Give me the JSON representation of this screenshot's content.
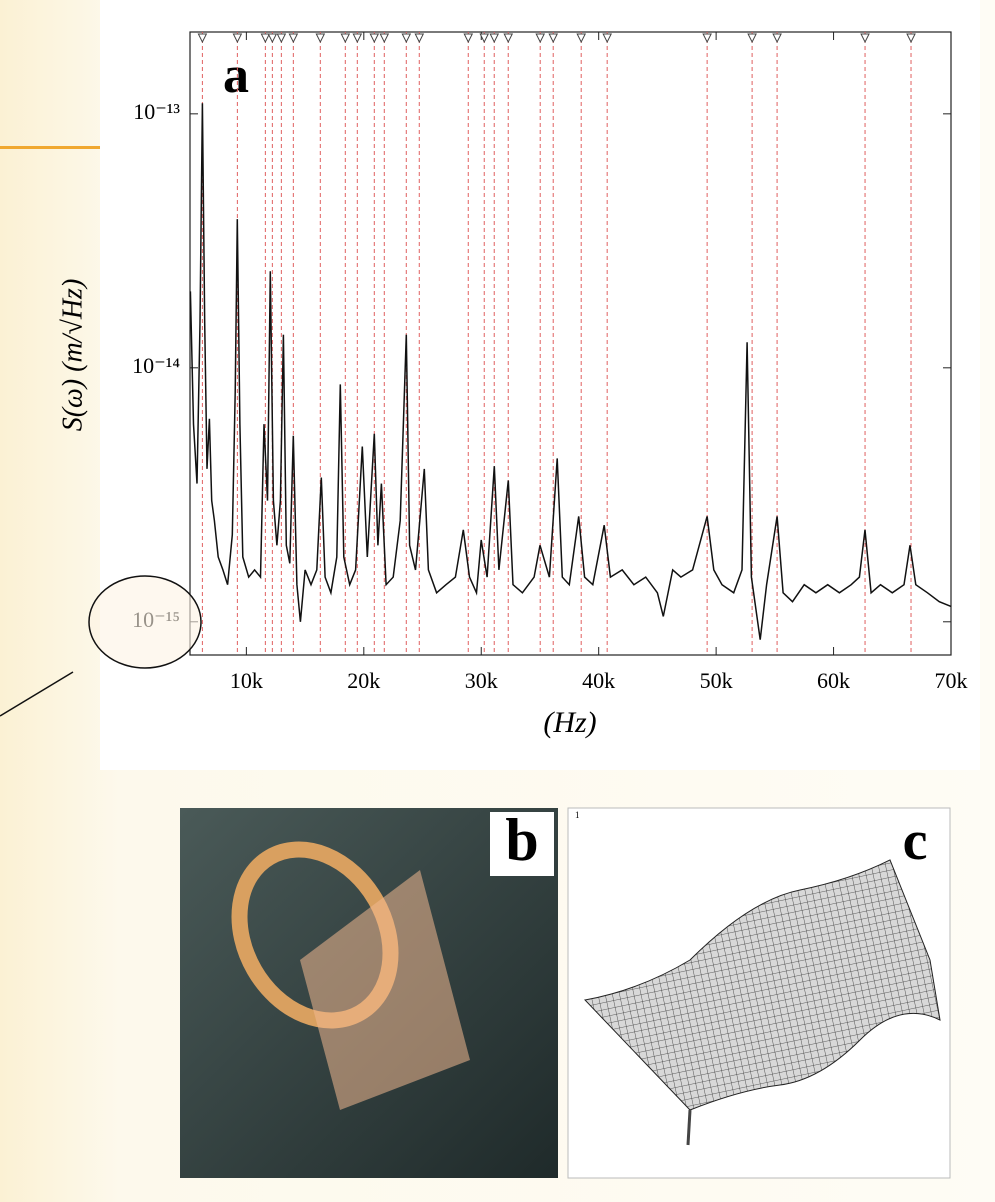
{
  "chart_data": {
    "type": "line",
    "title": "a",
    "x_label": "(Hz)",
    "y_label": "S(ω) (m/√Hz)",
    "log_y": true,
    "color": "#111111",
    "xlim": [
      5200,
      70000
    ],
    "xticks": [
      {
        "value": 10000,
        "label": "10k"
      },
      {
        "value": 20000,
        "label": "20k"
      },
      {
        "value": 30000,
        "label": "30k"
      },
      {
        "value": 40000,
        "label": "40k"
      },
      {
        "value": 50000,
        "label": "50k"
      },
      {
        "value": 60000,
        "label": "60k"
      },
      {
        "value": 70000,
        "label": "70k"
      }
    ],
    "ylim": [
      7.4e-16,
      2.1e-13
    ],
    "yticks": [
      {
        "value": 1e-13,
        "label": "10⁻¹³"
      },
      {
        "value": 1e-14,
        "label": "10⁻¹⁴"
      },
      {
        "value": 1e-15,
        "label": "10⁻¹⁵"
      }
    ],
    "x": [
      5234,
      5500,
      5800,
      6050,
      6255,
      6450,
      6650,
      6850,
      7050,
      7280,
      7600,
      8000,
      8400,
      8800,
      9050,
      9230,
      9450,
      9700,
      10200,
      10700,
      11200,
      11500,
      11800,
      12040,
      12300,
      12600,
      12900,
      13150,
      13400,
      13700,
      14000,
      14300,
      14600,
      15000,
      15500,
      16000,
      16380,
      16700,
      17200,
      17700,
      18000,
      18300,
      18800,
      19300,
      19870,
      20300,
      20890,
      21200,
      21500,
      21900,
      22500,
      23100,
      23620,
      23900,
      24400,
      25150,
      25500,
      26200,
      27000,
      27800,
      28470,
      29000,
      29600,
      30000,
      30500,
      31110,
      31500,
      32300,
      32700,
      33500,
      34500,
      35000,
      35800,
      36470,
      36900,
      37500,
      38300,
      38800,
      39500,
      40470,
      41000,
      42000,
      43000,
      44000,
      45000,
      45500,
      46300,
      47000,
      48000,
      49230,
      49800,
      50500,
      51500,
      52200,
      52640,
      53000,
      53750,
      54300,
      55190,
      55700,
      56500,
      57500,
      58500,
      59500,
      60500,
      61500,
      62200,
      62680,
      63200,
      64000,
      65000,
      66000,
      66510,
      67000,
      68000,
      69000,
      70000
    ],
    "values": [
      2e-14,
      6e-15,
      3.5e-15,
      1.5e-14,
      1.1e-13,
      1.5e-14,
      4e-15,
      6.3e-15,
      3e-15,
      2.5e-15,
      1.8e-15,
      1.6e-15,
      1.4e-15,
      2.2e-15,
      8e-15,
      3.85e-14,
      6e-15,
      1.8e-15,
      1.5e-15,
      1.6e-15,
      1.5e-15,
      6e-15,
      3e-15,
      2.4e-14,
      3e-15,
      2e-15,
      3e-15,
      1.35e-14,
      2e-15,
      1.7e-15,
      5.4e-15,
      1.4e-15,
      1e-15,
      1.6e-15,
      1.4e-15,
      1.6e-15,
      3.7e-15,
      1.5e-15,
      1.3e-15,
      1.8e-15,
      8.6e-15,
      1.8e-15,
      1.4e-15,
      1.6e-15,
      4.9e-15,
      1.8e-15,
      5.5e-15,
      2e-15,
      3.5e-15,
      1.4e-15,
      1.5e-15,
      2.5e-15,
      1.35e-14,
      2e-15,
      1.6e-15,
      4e-15,
      1.6e-15,
      1.3e-15,
      1.4e-15,
      1.5e-15,
      2.3e-15,
      1.5e-15,
      1.3e-15,
      2.1e-15,
      1.5e-15,
      4.1e-15,
      1.6e-15,
      3.6e-15,
      1.4e-15,
      1.3e-15,
      1.5e-15,
      2e-15,
      1.5e-15,
      4.4e-15,
      1.5e-15,
      1.4e-15,
      2.6e-15,
      1.5e-15,
      1.4e-15,
      2.4e-15,
      1.5e-15,
      1.6e-15,
      1.4e-15,
      1.5e-15,
      1.3e-15,
      1.05e-15,
      1.6e-15,
      1.5e-15,
      1.6e-15,
      2.6e-15,
      1.6e-15,
      1.4e-15,
      1.3e-15,
      1.6e-15,
      1.26e-14,
      1.5e-15,
      8.5e-16,
      1.4e-15,
      2.6e-15,
      1.3e-15,
      1.2e-15,
      1.4e-15,
      1.3e-15,
      1.4e-15,
      1.3e-15,
      1.4e-15,
      1.5e-15,
      2.3e-15,
      1.3e-15,
      1.4e-15,
      1.3e-15,
      1.4e-15,
      2e-15,
      1.4e-15,
      1.3e-15,
      1.2e-15,
      1.15e-15
    ],
    "markers": {
      "color": "#e06060",
      "x": [
        6255,
        9234,
        11617,
        12213,
        12979,
        13999,
        16296,
        18424,
        19446,
        20893,
        21744,
        23617,
        24723,
        28894,
        30255,
        31106,
        32298,
        35021,
        36128,
        38511,
        40723,
        49234,
        53064,
        55191,
        62681,
        66596
      ]
    }
  },
  "panels": [
    {
      "label": "b"
    },
    {
      "label": "c",
      "corner_text": "1"
    }
  ]
}
